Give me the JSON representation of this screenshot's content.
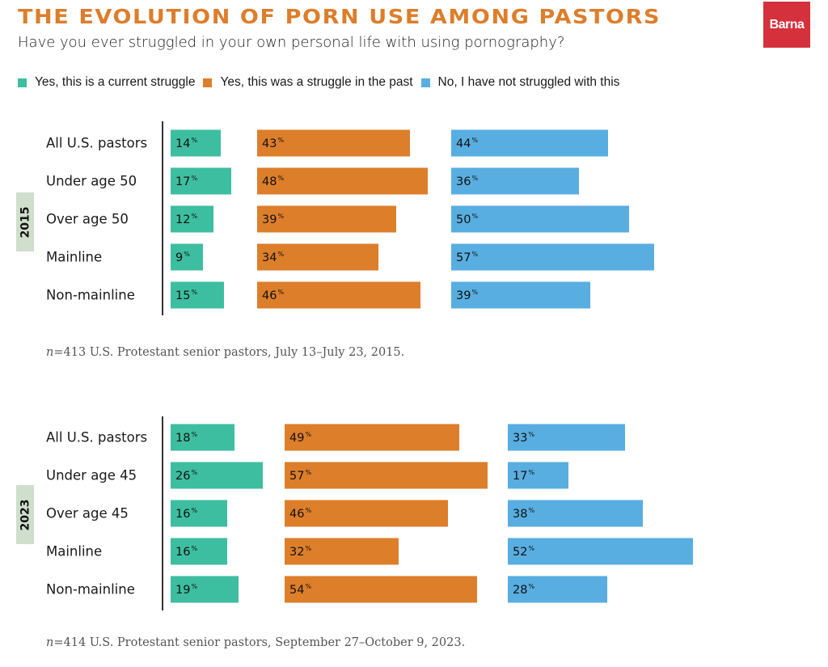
{
  "header": {
    "title": "THE EVOLUTION OF PORN USE AMONG PASTORS",
    "subtitle": "Have you ever struggled in your own personal life with using pornography?",
    "logo_text": "Barna",
    "logo_color": "#d5313c",
    "title_color": "#dd7e2b"
  },
  "legend": [
    {
      "label": "Yes, this is a current struggle",
      "color": "#3dbea0",
      "icon": "square-swatch"
    },
    {
      "label": "Yes, this was a struggle in the past",
      "color": "#dd7e2b",
      "icon": "square-swatch"
    },
    {
      "label": "No, I have not struggled with this",
      "color": "#58aee0",
      "icon": "square-swatch"
    }
  ],
  "chart_data": [
    {
      "type": "bar",
      "orientation": "horizontal",
      "panel_label": "2015",
      "categories": [
        "All U.S. pastors",
        "Under age 50",
        "Over age 50",
        "Mainline",
        "Non-mainline"
      ],
      "series": [
        {
          "name": "Yes, this is a current struggle",
          "color": "#3dbea0",
          "values": [
            14,
            17,
            12,
            9,
            15
          ]
        },
        {
          "name": "Yes, this was a struggle in the past",
          "color": "#dd7e2b",
          "values": [
            43,
            48,
            39,
            34,
            46
          ]
        },
        {
          "name": "No, I have not struggled with this",
          "color": "#58aee0",
          "values": [
            44,
            36,
            50,
            57,
            39
          ]
        }
      ],
      "value_suffix": "%",
      "note_prefix": "n",
      "note_text": "=413 U.S. Protestant senior pastors, July 13–July 23, 2015."
    },
    {
      "type": "bar",
      "orientation": "horizontal",
      "panel_label": "2023",
      "categories": [
        "All U.S. pastors",
        "Under age 45",
        "Over age 45",
        "Mainline",
        "Non-mainline"
      ],
      "series": [
        {
          "name": "Yes, this is a current struggle",
          "color": "#3dbea0",
          "values": [
            18,
            26,
            16,
            16,
            19
          ]
        },
        {
          "name": "Yes, this was a struggle in the past",
          "color": "#dd7e2b",
          "values": [
            49,
            57,
            46,
            32,
            54
          ]
        },
        {
          "name": "No, I have not struggled with this",
          "color": "#58aee0",
          "values": [
            33,
            17,
            38,
            52,
            28
          ]
        }
      ],
      "value_suffix": "%",
      "note_prefix": "n",
      "note_text": "=414 U.S. Protestant senior pastors, September 27–October 9, 2023."
    }
  ]
}
